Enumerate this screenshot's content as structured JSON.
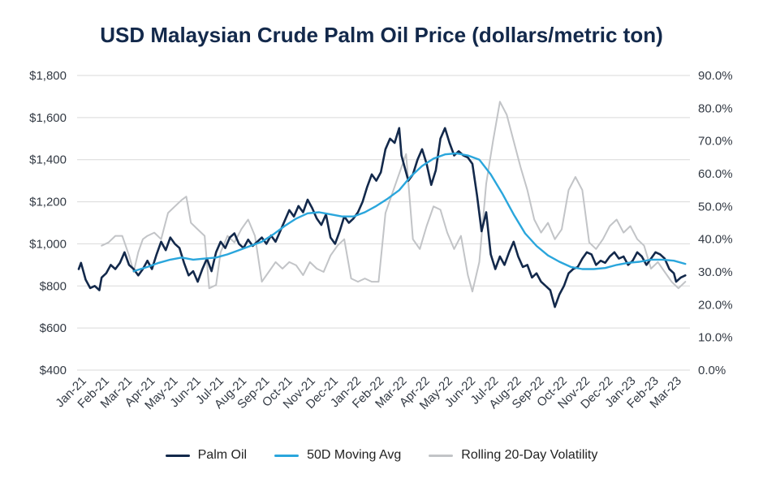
{
  "chart_data": {
    "type": "line",
    "title": "USD Malaysian Crude Palm Oil Price (dollars/metric ton)",
    "ylim_left": [
      400,
      1800
    ],
    "ylim_right": [
      0,
      90
    ],
    "left_ticks": [
      "$400",
      "$600",
      "$800",
      "$1,000",
      "$1,200",
      "$1,400",
      "$1,600",
      "$1,800"
    ],
    "right_ticks": [
      "0.0%",
      "10.0%",
      "20.0%",
      "30.0%",
      "40.0%",
      "50.0%",
      "60.0%",
      "70.0%",
      "80.0%",
      "90.0%"
    ],
    "x_tick_labels": [
      "Jan-21",
      "Feb-21",
      "Mar-21",
      "Apr-21",
      "May-21",
      "Jun-21",
      "Jul-21",
      "Aug-21",
      "Sep-21",
      "Oct-21",
      "Nov-21",
      "Dec-21",
      "Jan-22",
      "Feb-22",
      "Mar-22",
      "Apr-22",
      "May-22",
      "Jun-22",
      "Jul-22",
      "Aug-22",
      "Sep-22",
      "Oct-22",
      "Nov-22",
      "Dec-22",
      "Jan-23",
      "Feb-23",
      "Mar-23"
    ],
    "series": [
      {
        "name": "Palm Oil",
        "axis": "left",
        "color": "#13294b",
        "points": [
          [
            0.0,
            880
          ],
          [
            0.1,
            910
          ],
          [
            0.3,
            830
          ],
          [
            0.5,
            790
          ],
          [
            0.7,
            800
          ],
          [
            0.9,
            780
          ],
          [
            1.0,
            840
          ],
          [
            1.2,
            860
          ],
          [
            1.4,
            900
          ],
          [
            1.6,
            880
          ],
          [
            1.8,
            910
          ],
          [
            2.0,
            960
          ],
          [
            2.2,
            900
          ],
          [
            2.4,
            880
          ],
          [
            2.6,
            850
          ],
          [
            2.8,
            880
          ],
          [
            3.0,
            920
          ],
          [
            3.2,
            880
          ],
          [
            3.4,
            950
          ],
          [
            3.6,
            1010
          ],
          [
            3.8,
            970
          ],
          [
            4.0,
            1030
          ],
          [
            4.2,
            1000
          ],
          [
            4.4,
            980
          ],
          [
            4.6,
            910
          ],
          [
            4.8,
            850
          ],
          [
            5.0,
            870
          ],
          [
            5.2,
            820
          ],
          [
            5.4,
            880
          ],
          [
            5.6,
            930
          ],
          [
            5.8,
            870
          ],
          [
            6.0,
            960
          ],
          [
            6.2,
            1010
          ],
          [
            6.4,
            980
          ],
          [
            6.6,
            1030
          ],
          [
            6.8,
            1050
          ],
          [
            7.0,
            1000
          ],
          [
            7.2,
            980
          ],
          [
            7.4,
            1020
          ],
          [
            7.6,
            990
          ],
          [
            7.8,
            1010
          ],
          [
            8.0,
            1030
          ],
          [
            8.2,
            1000
          ],
          [
            8.4,
            1040
          ],
          [
            8.6,
            1010
          ],
          [
            8.8,
            1060
          ],
          [
            9.0,
            1110
          ],
          [
            9.2,
            1160
          ],
          [
            9.4,
            1130
          ],
          [
            9.6,
            1180
          ],
          [
            9.8,
            1150
          ],
          [
            10.0,
            1210
          ],
          [
            10.2,
            1170
          ],
          [
            10.4,
            1120
          ],
          [
            10.6,
            1090
          ],
          [
            10.8,
            1140
          ],
          [
            11.0,
            1030
          ],
          [
            11.2,
            1000
          ],
          [
            11.4,
            1060
          ],
          [
            11.6,
            1130
          ],
          [
            11.8,
            1100
          ],
          [
            12.0,
            1120
          ],
          [
            12.2,
            1150
          ],
          [
            12.4,
            1200
          ],
          [
            12.6,
            1270
          ],
          [
            12.8,
            1330
          ],
          [
            13.0,
            1300
          ],
          [
            13.2,
            1340
          ],
          [
            13.4,
            1450
          ],
          [
            13.6,
            1500
          ],
          [
            13.8,
            1480
          ],
          [
            14.0,
            1550
          ],
          [
            14.1,
            1420
          ],
          [
            14.2,
            1380
          ],
          [
            14.4,
            1300
          ],
          [
            14.6,
            1330
          ],
          [
            14.8,
            1400
          ],
          [
            15.0,
            1450
          ],
          [
            15.2,
            1380
          ],
          [
            15.4,
            1280
          ],
          [
            15.6,
            1350
          ],
          [
            15.8,
            1500
          ],
          [
            16.0,
            1550
          ],
          [
            16.2,
            1480
          ],
          [
            16.4,
            1420
          ],
          [
            16.6,
            1440
          ],
          [
            16.8,
            1420
          ],
          [
            17.0,
            1410
          ],
          [
            17.2,
            1380
          ],
          [
            17.4,
            1230
          ],
          [
            17.6,
            1060
          ],
          [
            17.8,
            1150
          ],
          [
            18.0,
            950
          ],
          [
            18.2,
            880
          ],
          [
            18.4,
            940
          ],
          [
            18.6,
            900
          ],
          [
            18.8,
            960
          ],
          [
            19.0,
            1010
          ],
          [
            19.2,
            940
          ],
          [
            19.4,
            890
          ],
          [
            19.6,
            900
          ],
          [
            19.8,
            840
          ],
          [
            20.0,
            860
          ],
          [
            20.2,
            820
          ],
          [
            20.4,
            800
          ],
          [
            20.6,
            780
          ],
          [
            20.8,
            700
          ],
          [
            21.0,
            760
          ],
          [
            21.2,
            800
          ],
          [
            21.4,
            860
          ],
          [
            21.6,
            880
          ],
          [
            21.8,
            890
          ],
          [
            22.0,
            930
          ],
          [
            22.2,
            960
          ],
          [
            22.4,
            950
          ],
          [
            22.6,
            900
          ],
          [
            22.8,
            920
          ],
          [
            23.0,
            910
          ],
          [
            23.2,
            940
          ],
          [
            23.4,
            960
          ],
          [
            23.6,
            930
          ],
          [
            23.8,
            940
          ],
          [
            24.0,
            900
          ],
          [
            24.2,
            920
          ],
          [
            24.4,
            960
          ],
          [
            24.6,
            940
          ],
          [
            24.8,
            900
          ],
          [
            25.0,
            930
          ],
          [
            25.2,
            960
          ],
          [
            25.4,
            950
          ],
          [
            25.6,
            930
          ],
          [
            25.8,
            880
          ],
          [
            26.0,
            860
          ],
          [
            26.1,
            820
          ],
          [
            26.3,
            840
          ],
          [
            26.5,
            850
          ]
        ]
      },
      {
        "name": "50D Moving Avg",
        "axis": "left",
        "color": "#2aa6dc",
        "points": [
          [
            2.4,
            870
          ],
          [
            3.0,
            890
          ],
          [
            3.5,
            910
          ],
          [
            4.0,
            925
          ],
          [
            4.5,
            935
          ],
          [
            5.0,
            925
          ],
          [
            5.5,
            930
          ],
          [
            6.0,
            935
          ],
          [
            6.5,
            950
          ],
          [
            7.0,
            970
          ],
          [
            7.5,
            990
          ],
          [
            8.0,
            1010
          ],
          [
            8.5,
            1045
          ],
          [
            9.0,
            1085
          ],
          [
            9.5,
            1120
          ],
          [
            10.0,
            1145
          ],
          [
            10.5,
            1150
          ],
          [
            11.0,
            1140
          ],
          [
            11.5,
            1130
          ],
          [
            12.0,
            1130
          ],
          [
            12.5,
            1150
          ],
          [
            13.0,
            1180
          ],
          [
            13.5,
            1215
          ],
          [
            14.0,
            1255
          ],
          [
            14.5,
            1320
          ],
          [
            15.0,
            1370
          ],
          [
            15.5,
            1405
          ],
          [
            16.0,
            1425
          ],
          [
            16.5,
            1430
          ],
          [
            17.0,
            1420
          ],
          [
            17.5,
            1400
          ],
          [
            18.0,
            1330
          ],
          [
            18.5,
            1240
          ],
          [
            19.0,
            1140
          ],
          [
            19.5,
            1050
          ],
          [
            20.0,
            990
          ],
          [
            20.5,
            945
          ],
          [
            21.0,
            915
          ],
          [
            21.5,
            890
          ],
          [
            22.0,
            880
          ],
          [
            22.5,
            880
          ],
          [
            23.0,
            885
          ],
          [
            23.5,
            900
          ],
          [
            24.0,
            910
          ],
          [
            24.5,
            915
          ],
          [
            25.0,
            925
          ],
          [
            25.5,
            925
          ],
          [
            26.0,
            920
          ],
          [
            26.5,
            905
          ]
        ]
      },
      {
        "name": "Rolling 20-Day Volatility",
        "axis": "right",
        "color": "#c2c4c7",
        "points": [
          [
            1.0,
            38
          ],
          [
            1.3,
            39
          ],
          [
            1.6,
            41
          ],
          [
            1.9,
            41
          ],
          [
            2.2,
            35
          ],
          [
            2.4,
            30
          ],
          [
            2.6,
            36
          ],
          [
            2.8,
            40
          ],
          [
            3.0,
            41
          ],
          [
            3.3,
            42
          ],
          [
            3.6,
            40
          ],
          [
            3.9,
            48
          ],
          [
            4.2,
            50
          ],
          [
            4.5,
            52
          ],
          [
            4.7,
            53
          ],
          [
            4.9,
            45
          ],
          [
            5.2,
            43
          ],
          [
            5.5,
            41
          ],
          [
            5.7,
            25
          ],
          [
            6.0,
            26
          ],
          [
            6.2,
            36
          ],
          [
            6.5,
            41
          ],
          [
            6.8,
            39
          ],
          [
            7.1,
            43
          ],
          [
            7.4,
            46
          ],
          [
            7.7,
            41
          ],
          [
            8.0,
            27
          ],
          [
            8.3,
            30
          ],
          [
            8.6,
            33
          ],
          [
            8.9,
            31
          ],
          [
            9.2,
            33
          ],
          [
            9.5,
            32
          ],
          [
            9.8,
            29
          ],
          [
            10.1,
            33
          ],
          [
            10.4,
            31
          ],
          [
            10.7,
            30
          ],
          [
            11.0,
            35
          ],
          [
            11.3,
            38
          ],
          [
            11.6,
            40
          ],
          [
            11.9,
            28
          ],
          [
            12.2,
            27
          ],
          [
            12.5,
            28
          ],
          [
            12.8,
            27
          ],
          [
            13.1,
            27
          ],
          [
            13.4,
            48
          ],
          [
            13.7,
            54
          ],
          [
            14.0,
            60
          ],
          [
            14.3,
            66
          ],
          [
            14.6,
            40
          ],
          [
            14.9,
            37
          ],
          [
            15.2,
            44
          ],
          [
            15.5,
            50
          ],
          [
            15.8,
            49
          ],
          [
            16.1,
            42
          ],
          [
            16.4,
            37
          ],
          [
            16.7,
            41
          ],
          [
            17.0,
            29
          ],
          [
            17.2,
            24
          ],
          [
            17.5,
            33
          ],
          [
            17.8,
            57
          ],
          [
            18.1,
            70
          ],
          [
            18.4,
            82
          ],
          [
            18.7,
            78
          ],
          [
            19.0,
            70
          ],
          [
            19.3,
            62
          ],
          [
            19.6,
            55
          ],
          [
            19.9,
            46
          ],
          [
            20.2,
            42
          ],
          [
            20.5,
            45
          ],
          [
            20.8,
            40
          ],
          [
            21.1,
            43
          ],
          [
            21.4,
            55
          ],
          [
            21.7,
            59
          ],
          [
            22.0,
            55
          ],
          [
            22.3,
            39
          ],
          [
            22.6,
            37
          ],
          [
            22.9,
            40
          ],
          [
            23.2,
            44
          ],
          [
            23.5,
            46
          ],
          [
            23.8,
            42
          ],
          [
            24.1,
            44
          ],
          [
            24.4,
            40
          ],
          [
            24.7,
            38
          ],
          [
            25.0,
            31
          ],
          [
            25.3,
            33
          ],
          [
            25.6,
            30
          ],
          [
            25.9,
            27
          ],
          [
            26.2,
            25
          ],
          [
            26.5,
            27
          ]
        ]
      }
    ]
  }
}
